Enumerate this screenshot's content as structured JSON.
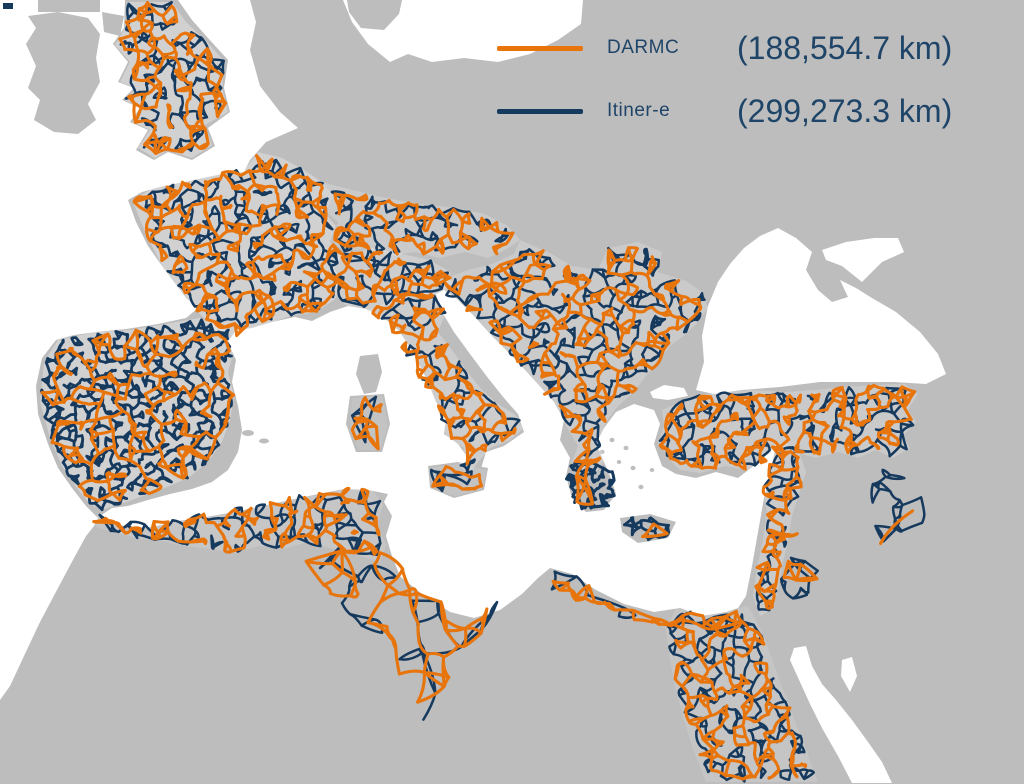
{
  "legend": {
    "items": [
      {
        "id": "darmc",
        "label": "DARMC",
        "value": "(188,554.7 km)",
        "length_km": 188554.7,
        "color": "#E8740C"
      },
      {
        "id": "itinere",
        "label": "Itiner-e",
        "value": "(299,273.3 km)",
        "length_km": 299273.3,
        "color": "#16395E"
      }
    ]
  },
  "map": {
    "colors": {
      "land": "#BDBDBD",
      "sea": "#FFFFFF",
      "darmc_route": "#E8740C",
      "itinere_route": "#16395E",
      "legend_text": "#1E4468"
    }
  }
}
